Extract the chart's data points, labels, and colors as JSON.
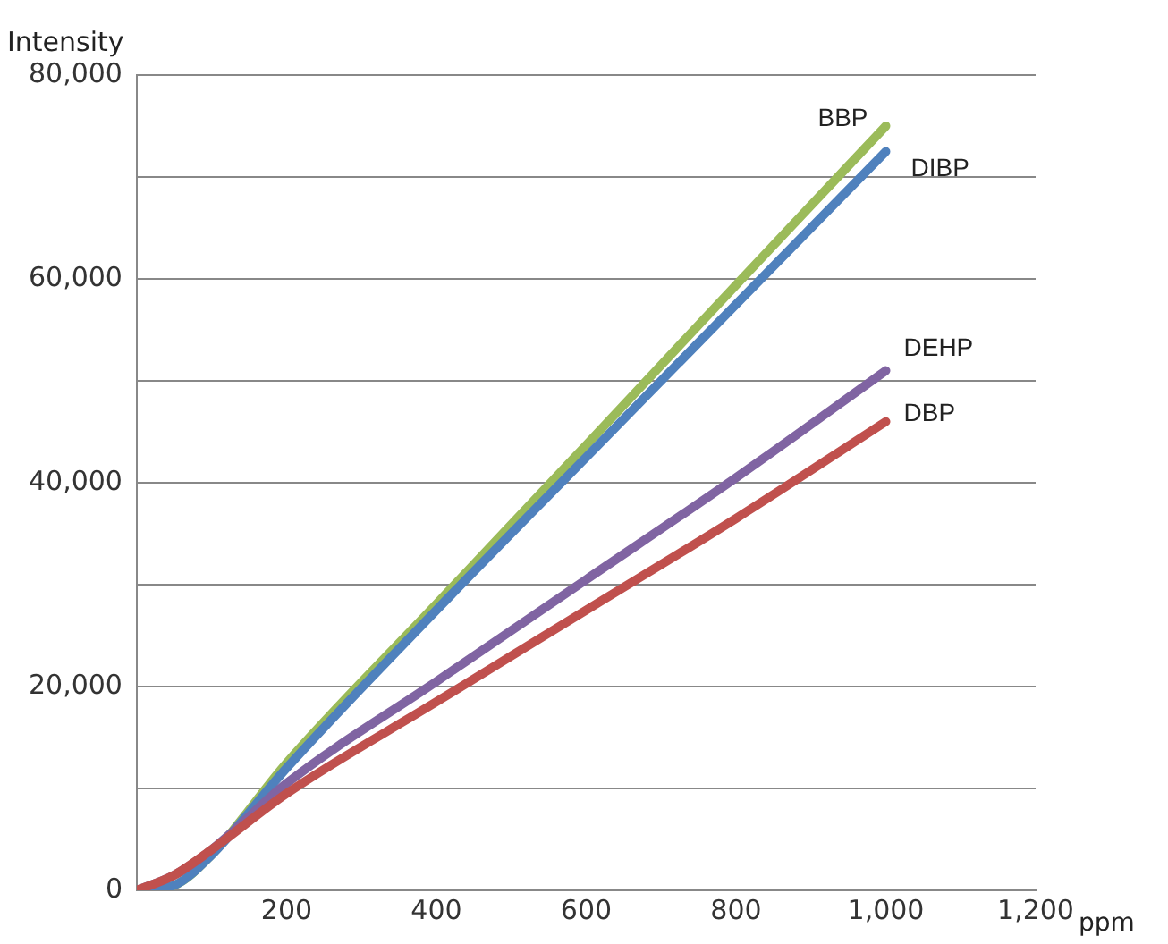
{
  "chart_data": {
    "type": "line",
    "xlabel": "ppm",
    "ylabel": "Intensity",
    "x": [
      0,
      50,
      100,
      200,
      400,
      600,
      800,
      1000
    ],
    "series": [
      {
        "name": "BBP",
        "color": "#9bbb59",
        "values": [
          0,
          500,
          3500,
          12500,
          28100,
          43700,
          59400,
          75000
        ]
      },
      {
        "name": "DIBP",
        "color": "#4f81bd",
        "values": [
          0,
          500,
          3500,
          12000,
          27500,
          42500,
          57500,
          72500
        ]
      },
      {
        "name": "DEHP",
        "color": "#8064a2",
        "values": [
          0,
          1500,
          4000,
          10500,
          20500,
          30500,
          40500,
          51000
        ]
      },
      {
        "name": "DBP",
        "color": "#c0504d",
        "values": [
          0,
          1500,
          4000,
          9500,
          18500,
          27500,
          36500,
          46000
        ]
      }
    ],
    "xlim": [
      0,
      1200
    ],
    "xticks": [
      200,
      400,
      600,
      800,
      {
        "value": 1000,
        "label": "1,000"
      },
      {
        "value": 1200,
        "label": "1,200"
      }
    ],
    "ylim": [
      0,
      80000
    ],
    "yticks": [
      0,
      {
        "value": 10000,
        "label": null
      },
      {
        "value": 20000,
        "label": "20,000"
      },
      {
        "value": 30000,
        "label": null
      },
      {
        "value": 40000,
        "label": "40,000"
      },
      {
        "value": 50000,
        "label": null
      },
      {
        "value": 60000,
        "label": "60,000"
      },
      {
        "value": 70000,
        "label": null
      },
      {
        "value": 80000,
        "label": "80,000"
      }
    ],
    "grid": "y",
    "legend": false,
    "marker": "none",
    "line_style": "solid"
  }
}
